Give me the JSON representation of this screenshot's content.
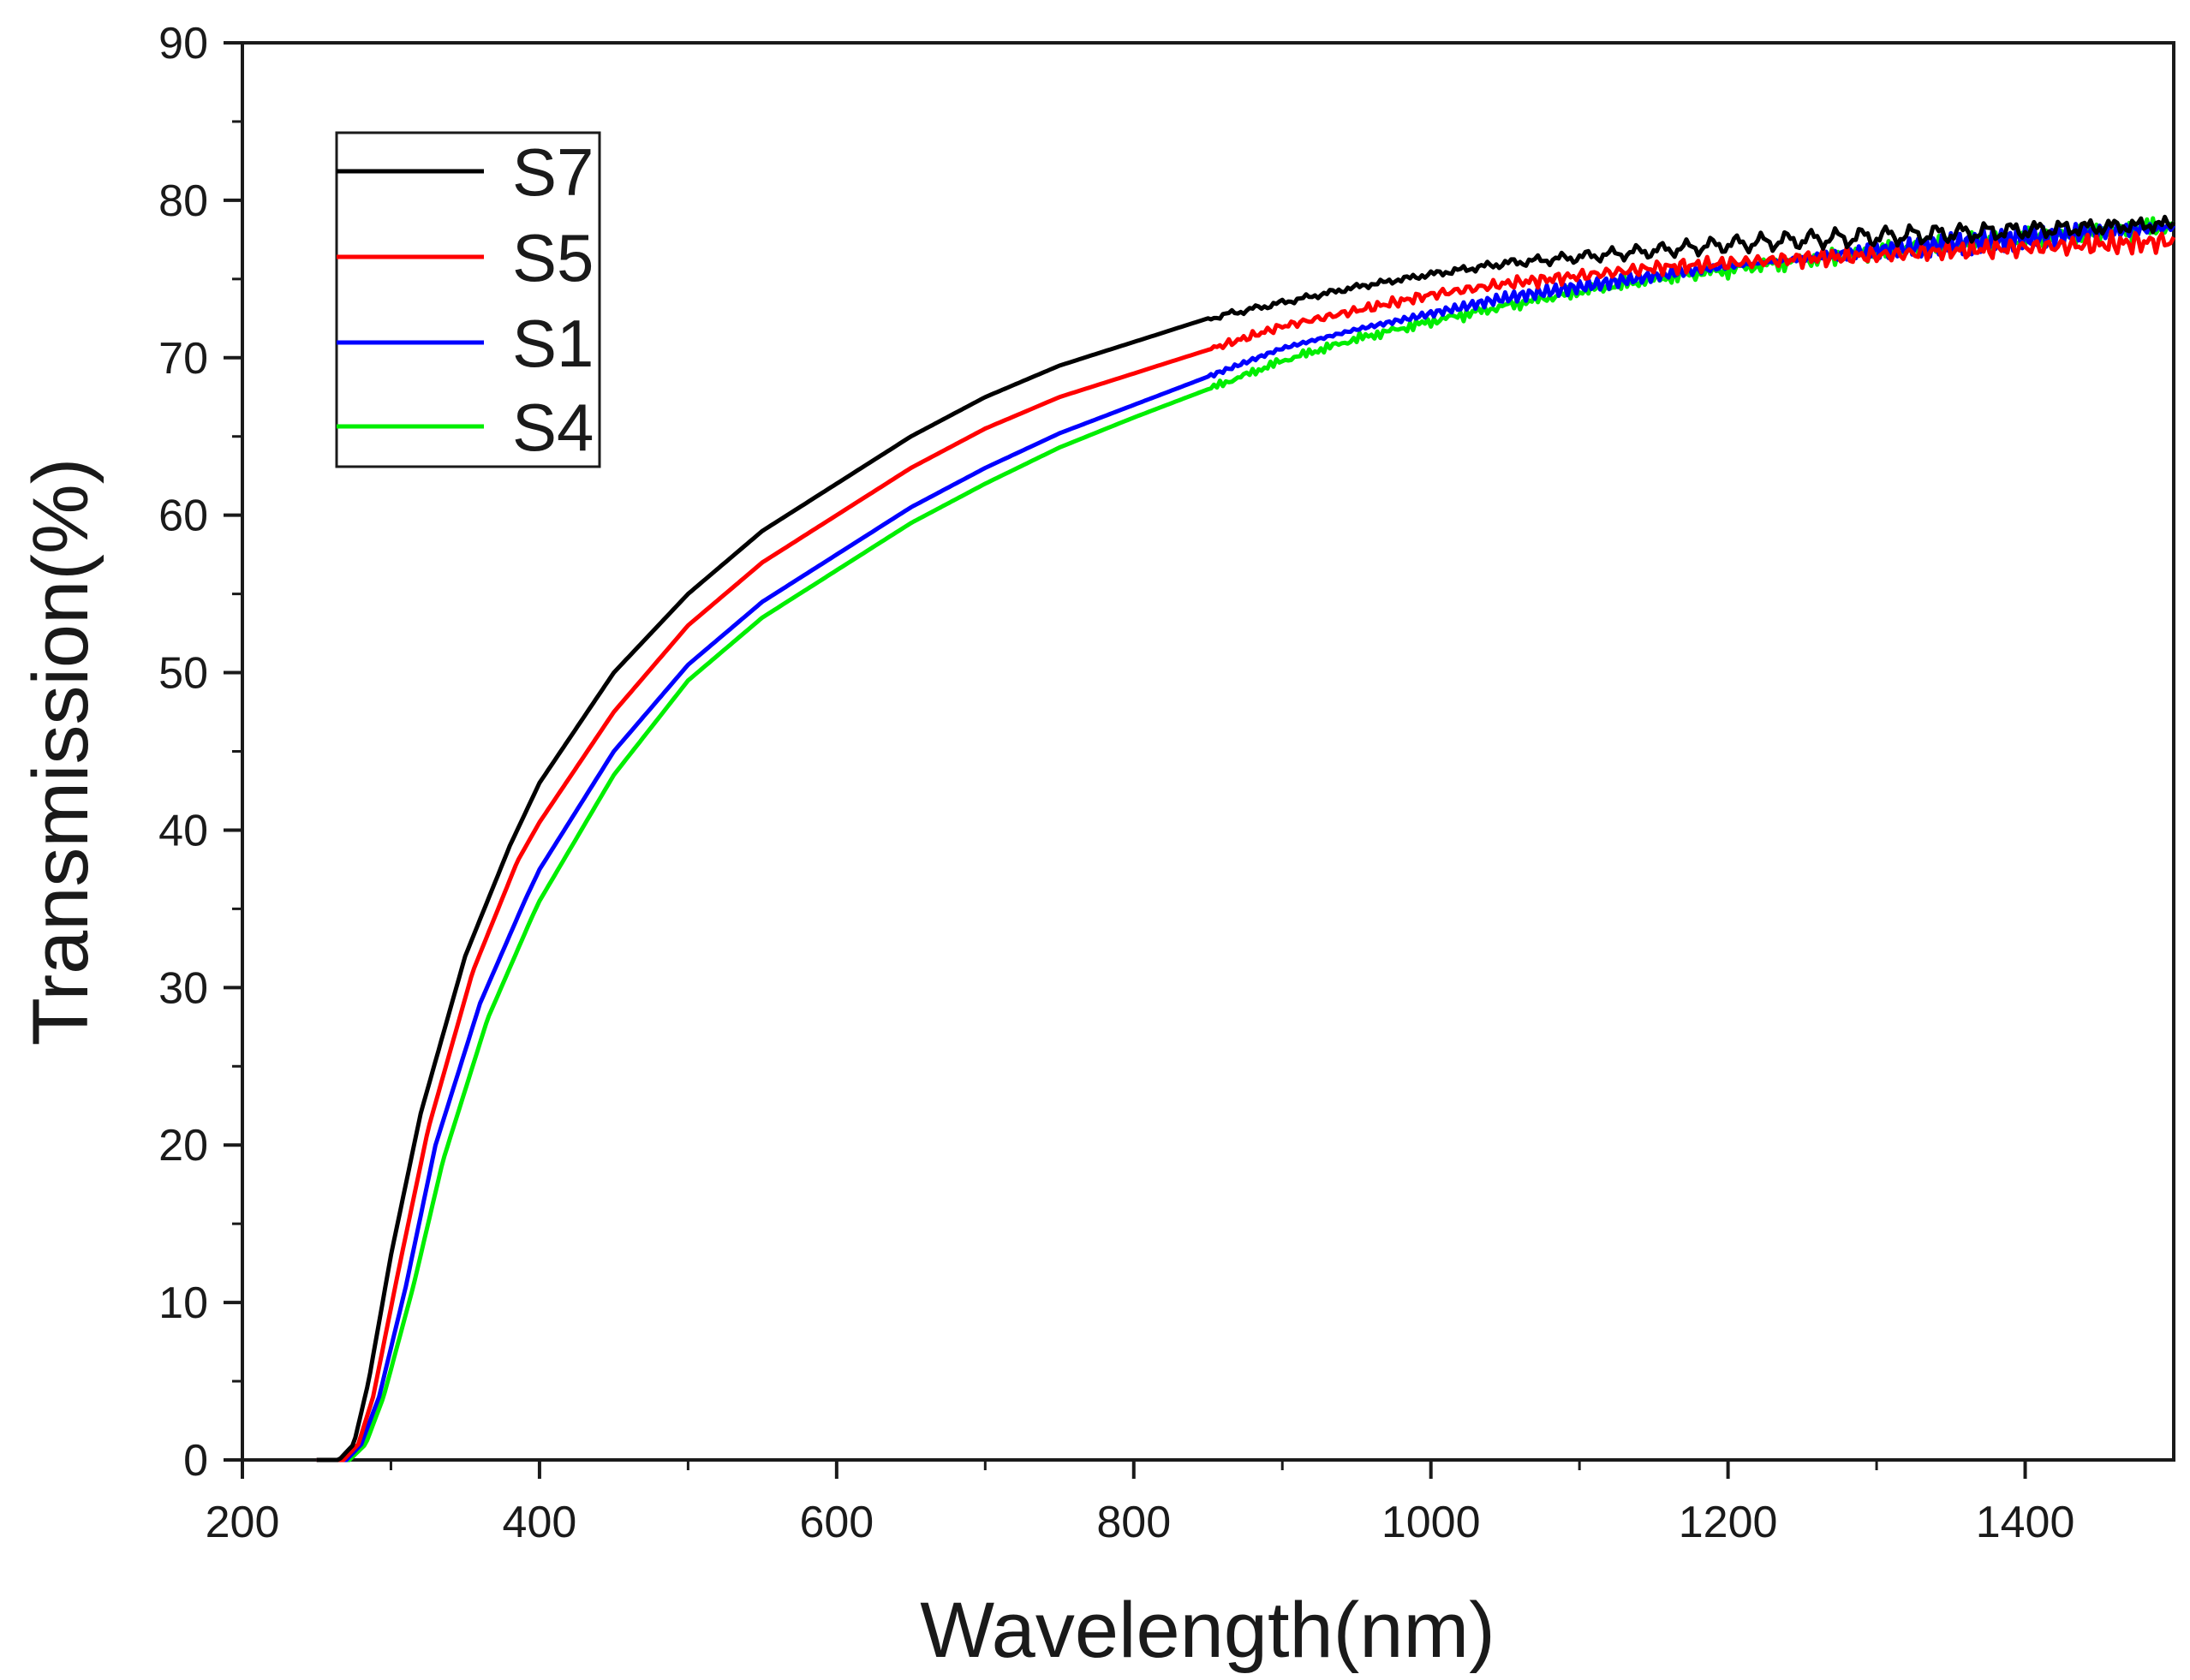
{
  "chart_data": {
    "type": "line",
    "title": "",
    "xlabel": "Wavelength(nm)",
    "ylabel": "Transmission(%)",
    "xlim": [
      200,
      1500
    ],
    "ylim": [
      0,
      90
    ],
    "x_ticks": [
      200,
      400,
      600,
      800,
      1000,
      1200,
      1400
    ],
    "x_tick_labels": [
      "200",
      "400",
      "600",
      "800",
      "1000",
      "1200",
      "1400"
    ],
    "y_ticks": [
      0,
      10,
      20,
      30,
      40,
      50,
      60,
      70,
      80,
      90
    ],
    "y_tick_labels": [
      "0",
      "10",
      "20",
      "30",
      "40",
      "50",
      "60",
      "70",
      "80",
      "90"
    ],
    "grid": false,
    "legend_position": "top-left",
    "series": [
      {
        "name": "S7",
        "color": "#000000",
        "x": [
          250,
          265,
          275,
          285,
          300,
          320,
          350,
          380,
          400,
          450,
          500,
          550,
          600,
          650,
          700,
          750,
          800,
          850,
          900,
          950,
          1000,
          1050,
          1100,
          1150,
          1200,
          1250,
          1300,
          1350,
          1400,
          1450,
          1500
        ],
        "y": [
          0,
          0,
          1,
          5,
          13,
          22,
          32,
          39,
          43,
          50,
          55,
          59,
          62,
          65,
          67.5,
          69.5,
          71,
          72.5,
          73.5,
          74.5,
          75.3,
          76,
          76.4,
          76.8,
          77.2,
          77.5,
          77.7,
          77.9,
          78.1,
          78.3,
          78.5
        ]
      },
      {
        "name": "S5",
        "color": "#ff0000",
        "x": [
          250,
          268,
          278,
          288,
          305,
          325,
          355,
          385,
          400,
          450,
          500,
          550,
          600,
          650,
          700,
          750,
          800,
          850,
          900,
          950,
          1000,
          1050,
          1100,
          1150,
          1200,
          1250,
          1300,
          1350,
          1400,
          1450,
          1500
        ],
        "y": [
          0,
          0,
          1,
          4,
          12,
          21,
          31,
          38,
          40.5,
          47.5,
          53,
          57,
          60,
          63,
          65.5,
          67.5,
          69,
          70.5,
          72,
          73,
          74,
          74.7,
          75.2,
          75.7,
          76,
          76.3,
          76.5,
          76.8,
          77,
          77.2,
          77.4
        ]
      },
      {
        "name": "S1",
        "color": "#0000ff",
        "x": [
          250,
          270,
          280,
          292,
          310,
          330,
          360,
          390,
          400,
          450,
          500,
          550,
          600,
          650,
          700,
          750,
          800,
          850,
          900,
          950,
          1000,
          1050,
          1100,
          1150,
          1200,
          1250,
          1300,
          1350,
          1400,
          1450,
          1500
        ],
        "y": [
          0,
          0,
          1,
          4,
          11,
          20,
          29,
          35.5,
          37.5,
          45,
          50.5,
          54.5,
          57.5,
          60.5,
          63,
          65.2,
          67,
          68.8,
          70.6,
          71.8,
          72.8,
          73.8,
          74.5,
          75.2,
          75.8,
          76.3,
          76.8,
          77.2,
          77.6,
          78,
          78.3
        ]
      },
      {
        "name": "S4",
        "color": "#00ee00",
        "x": [
          250,
          272,
          283,
          295,
          315,
          335,
          365,
          395,
          400,
          450,
          500,
          550,
          600,
          650,
          700,
          750,
          800,
          850,
          900,
          950,
          1000,
          1050,
          1100,
          1150,
          1200,
          1250,
          1300,
          1350,
          1400,
          1450,
          1500
        ],
        "y": [
          0,
          0,
          1,
          4,
          11,
          19,
          28,
          34.5,
          35.5,
          43.5,
          49.5,
          53.5,
          56.5,
          59.5,
          62,
          64.3,
          66.2,
          68,
          69.8,
          71.2,
          72.3,
          73.3,
          74.2,
          75,
          75.6,
          76.2,
          76.7,
          77.2,
          77.6,
          78,
          78.4
        ]
      }
    ]
  }
}
